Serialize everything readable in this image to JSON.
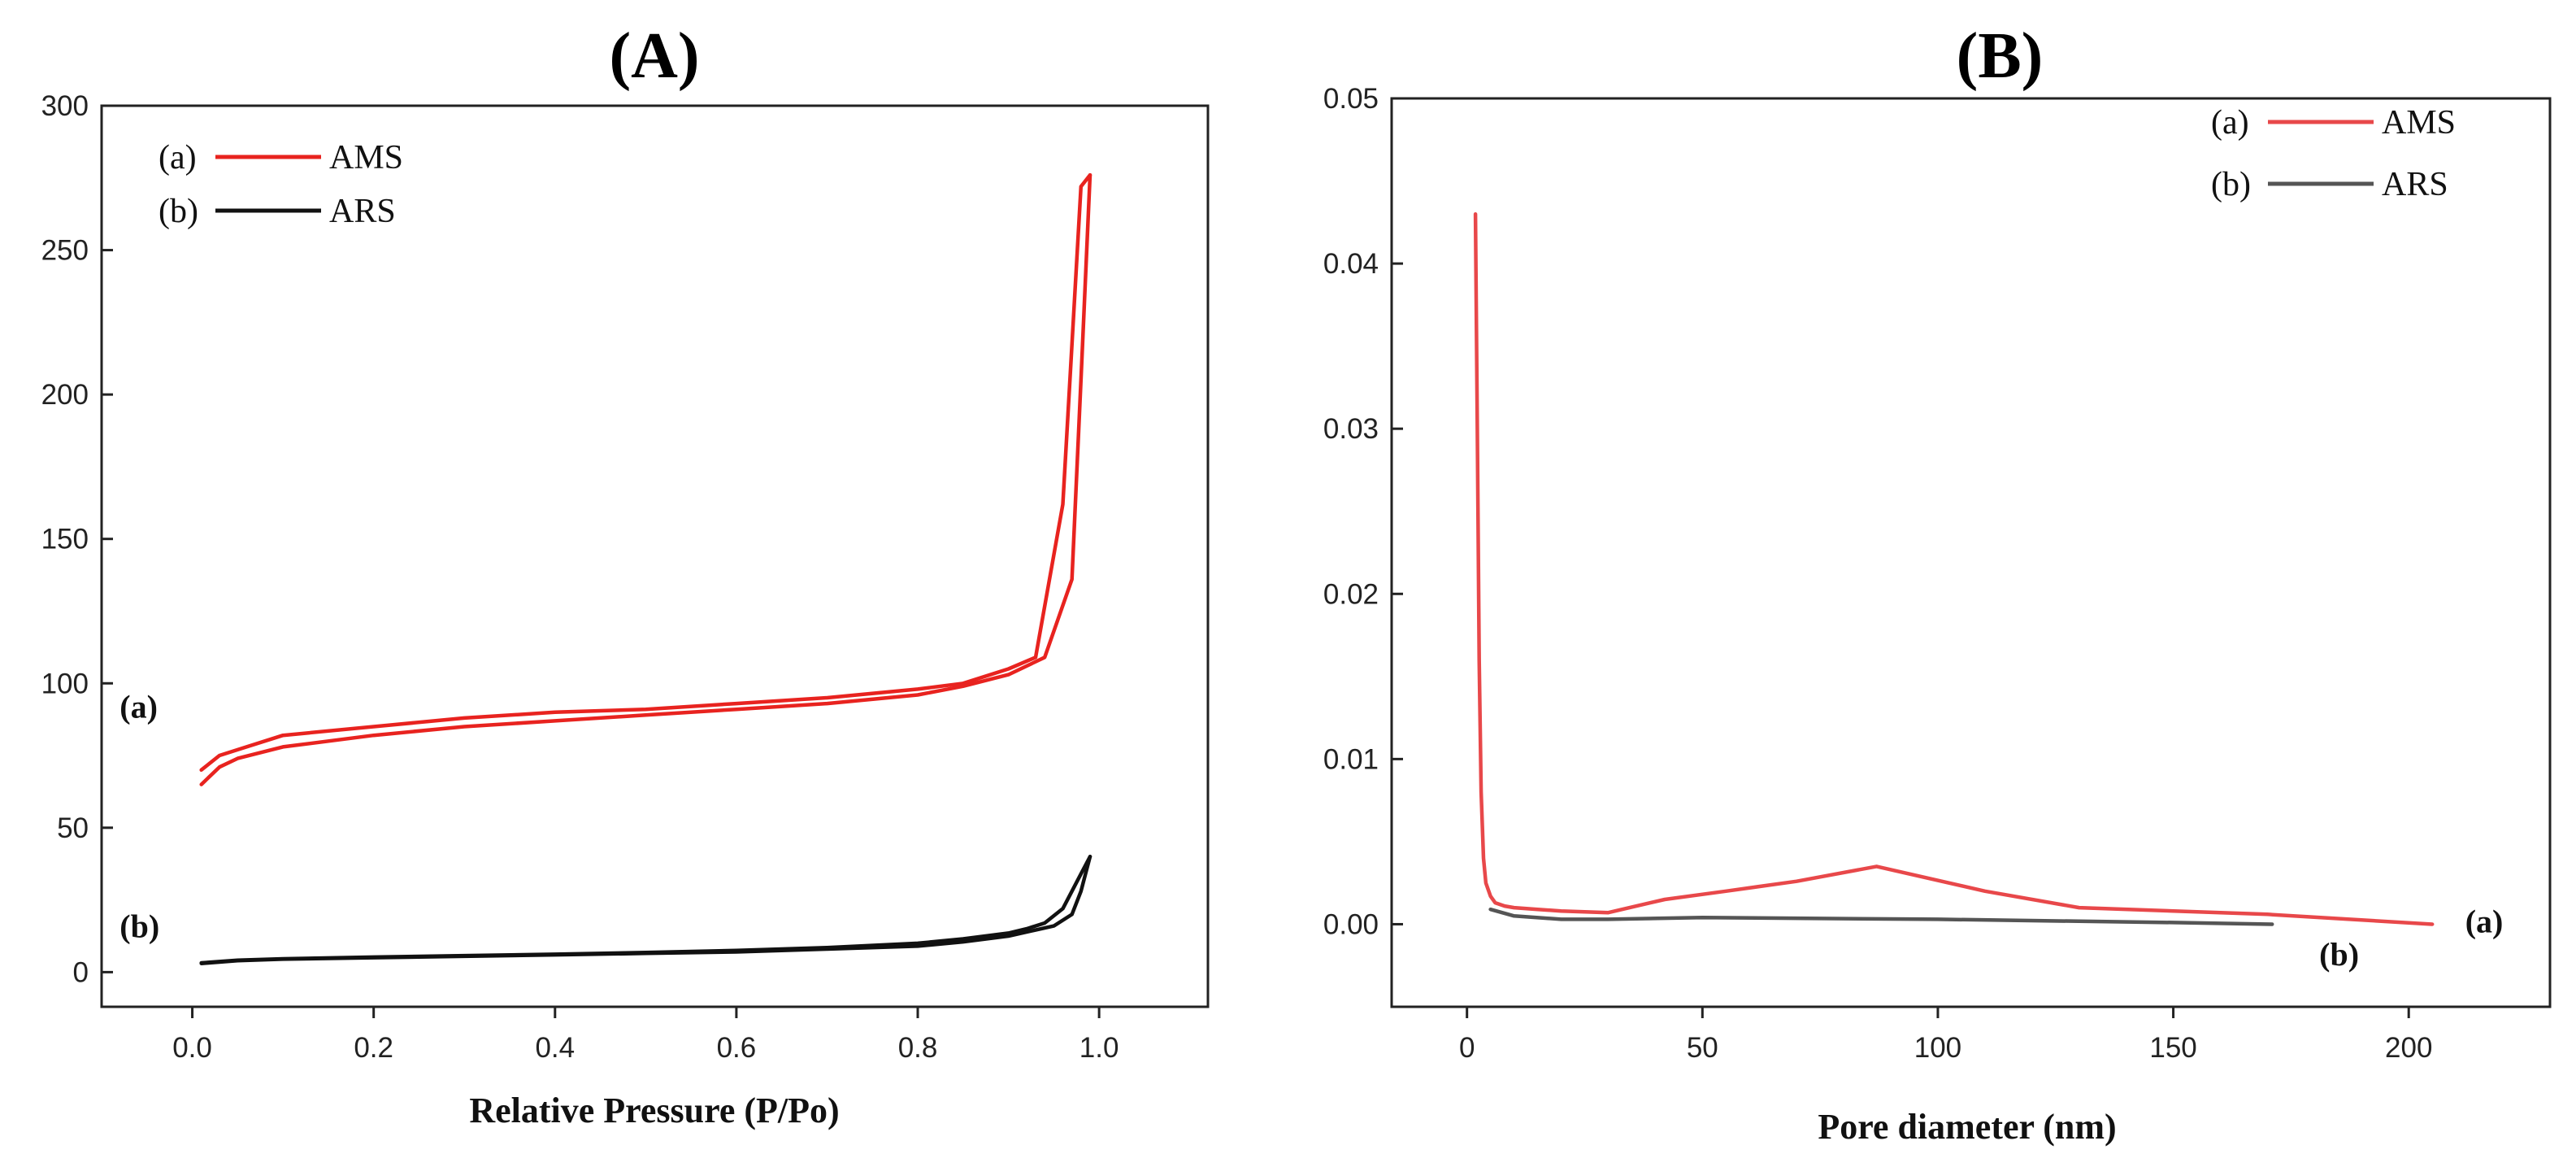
{
  "chart_data": [
    {
      "type": "line",
      "panel_title": "(A)",
      "xlabel": "Relative Pressure (P/Po)",
      "ylabel": "",
      "xlim": [
        -0.1,
        1.12
      ],
      "ylim": [
        -12,
        300
      ],
      "xticks": [
        0.0,
        0.2,
        0.4,
        0.6,
        0.8,
        1.0
      ],
      "xtick_labels": [
        "0.0",
        "0.2",
        "0.4",
        "0.6",
        "0.8",
        "1.0"
      ],
      "yticks": [
        0,
        50,
        100,
        150,
        200,
        250,
        300
      ],
      "ytick_labels": [
        "0",
        "50",
        "100",
        "150",
        "200",
        "250",
        "300"
      ],
      "legend": {
        "placement": "top-left",
        "entries": [
          {
            "tag": "(a)",
            "name": "AMS",
            "color": "#e8231f"
          },
          {
            "tag": "(b)",
            "name": "ARS",
            "color": "#111111"
          }
        ]
      },
      "annotations": [
        {
          "text": "(a)",
          "x": -0.08,
          "y": 92
        },
        {
          "text": "(b)",
          "x": -0.08,
          "y": 16
        }
      ],
      "series": [
        {
          "name": "AMS adsorption",
          "color": "#e8231f",
          "x": [
            0.01,
            0.03,
            0.05,
            0.1,
            0.2,
            0.3,
            0.4,
            0.5,
            0.6,
            0.7,
            0.8,
            0.85,
            0.9,
            0.94,
            0.97,
            0.98,
            0.99
          ],
          "y": [
            65,
            71,
            74,
            78,
            82,
            85,
            87,
            89,
            91,
            93,
            96,
            99,
            103,
            109,
            136,
            205,
            276
          ]
        },
        {
          "name": "AMS desorption",
          "color": "#e8231f",
          "x": [
            0.99,
            0.98,
            0.96,
            0.93,
            0.9,
            0.85,
            0.8,
            0.7,
            0.6,
            0.5,
            0.4,
            0.3,
            0.2,
            0.1,
            0.05,
            0.03,
            0.01
          ],
          "y": [
            276,
            272,
            162,
            109,
            105,
            100,
            98,
            95,
            93,
            91,
            90,
            88,
            85,
            82,
            77,
            75,
            70
          ]
        },
        {
          "name": "ARS adsorption",
          "color": "#111111",
          "x": [
            0.01,
            0.05,
            0.1,
            0.2,
            0.3,
            0.4,
            0.5,
            0.6,
            0.7,
            0.8,
            0.85,
            0.9,
            0.95,
            0.97,
            0.98,
            0.99
          ],
          "y": [
            3,
            4,
            4.5,
            5,
            5.5,
            6,
            6.5,
            7,
            8,
            9,
            10.5,
            12.5,
            16,
            20,
            28,
            40
          ]
        },
        {
          "name": "ARS desorption",
          "color": "#111111",
          "x": [
            0.99,
            0.98,
            0.96,
            0.94,
            0.92,
            0.9,
            0.85,
            0.8,
            0.7,
            0.6,
            0.5,
            0.4,
            0.3,
            0.2,
            0.1,
            0.05,
            0.01
          ],
          "y": [
            40,
            34,
            22,
            17,
            15,
            13.5,
            11.5,
            10,
            8.5,
            7.5,
            6.8,
            6.2,
            5.7,
            5.2,
            4.6,
            4.1,
            3.2
          ]
        }
      ]
    },
    {
      "type": "line",
      "panel_title": "(B)",
      "xlabel": "Pore diameter (nm)",
      "ylabel": "",
      "xlim": [
        -16,
        230
      ],
      "ylim": [
        -0.005,
        0.05
      ],
      "xticks": [
        0,
        50,
        100,
        150,
        200
      ],
      "xtick_labels": [
        "0",
        "50",
        "100",
        "150",
        "200"
      ],
      "yticks": [
        0,
        0.01,
        0.02,
        0.03,
        0.04,
        0.05
      ],
      "ytick_labels": [
        "0.00",
        "0.01",
        "0.02",
        "0.03",
        "0.04",
        "0.05"
      ],
      "legend": {
        "placement": "top-right",
        "entries": [
          {
            "tag": "(a)",
            "name": "AMS",
            "color": "#e8484a"
          },
          {
            "tag": "(b)",
            "name": "ARS",
            "color": "#555555"
          }
        ]
      },
      "annotations": [
        {
          "text": "(a)",
          "x": 212,
          "y": 0.0002
        },
        {
          "text": "(b)",
          "x": 181,
          "y": -0.0018
        }
      ],
      "series": [
        {
          "name": "AMS",
          "color": "#e8484a",
          "x": [
            1.8,
            2.2,
            2.6,
            3.0,
            3.5,
            4,
            5,
            6,
            8,
            10,
            15,
            20,
            30,
            42,
            55,
            70,
            87,
            110,
            130,
            170,
            205
          ],
          "y": [
            0.043,
            0.03,
            0.016,
            0.008,
            0.004,
            0.0025,
            0.0017,
            0.0013,
            0.0011,
            0.001,
            0.0009,
            0.0008,
            0.0007,
            0.0015,
            0.002,
            0.0026,
            0.0035,
            0.002,
            0.001,
            0.0006,
            0.0
          ]
        },
        {
          "name": "ARS",
          "color": "#555555",
          "x": [
            5,
            10,
            20,
            30,
            50,
            100,
            150,
            171
          ],
          "y": [
            0.0009,
            0.0005,
            0.0003,
            0.0003,
            0.0004,
            0.0003,
            0.0001,
            0.0
          ]
        }
      ]
    }
  ]
}
